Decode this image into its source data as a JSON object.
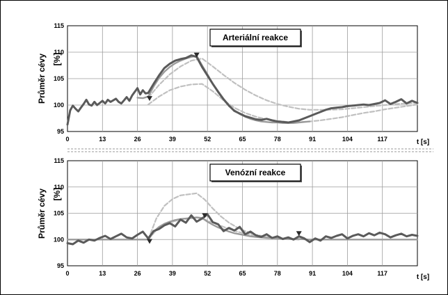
{
  "figure": {
    "colors": {
      "measured": "#5a5a5a",
      "fit": "#9a9a9a",
      "model": "#c0c0c0",
      "grid": "#9c9c9c",
      "marker": "#2a2a2a"
    }
  },
  "chart_data": [
    {
      "type": "line",
      "title": "Arteriální reakce",
      "ylabel_main": "Průměr cévy",
      "ylabel_unit": "[%]",
      "xlabel": "t [s]",
      "xlim": [
        0,
        130
      ],
      "ylim": [
        95,
        115
      ],
      "x_ticks": [
        "0",
        "13",
        "26",
        "39",
        "52",
        "65",
        "78",
        "91",
        "104",
        "117"
      ],
      "y_ticks": [
        "95",
        "100",
        "105",
        "110",
        "115"
      ],
      "grid": true,
      "series": [
        {
          "role": "measured",
          "x": [
            0,
            1,
            2,
            3,
            4,
            5,
            6,
            7,
            8,
            9,
            10,
            11,
            12,
            13,
            14,
            15,
            16,
            17,
            18,
            19,
            20,
            21,
            22,
            23,
            24,
            25,
            26,
            27,
            28,
            29,
            30,
            32,
            34,
            36,
            38,
            40,
            42,
            44,
            46,
            48,
            50,
            52,
            54,
            56,
            58,
            60,
            62,
            64,
            66,
            68,
            70,
            72,
            74,
            76,
            78,
            80,
            82,
            84,
            86,
            88,
            90,
            92,
            94,
            96,
            98,
            100,
            102,
            104,
            106,
            108,
            110,
            112,
            114,
            116,
            118,
            120,
            122,
            124,
            126,
            128,
            130
          ],
          "values": [
            96.3,
            99.0,
            99.9,
            99.3,
            98.8,
            99.5,
            100.2,
            101.0,
            100.1,
            99.9,
            100.6,
            100.0,
            100.4,
            100.8,
            100.3,
            101.0,
            100.6,
            100.9,
            101.2,
            100.6,
            100.3,
            100.9,
            101.5,
            100.8,
            101.8,
            102.5,
            103.2,
            102.0,
            102.8,
            102.2,
            102.3,
            104.0,
            105.6,
            107.0,
            107.8,
            108.4,
            108.7,
            108.9,
            109.4,
            109.1,
            107.2,
            105.6,
            104.0,
            102.5,
            101.1,
            99.9,
            98.9,
            98.4,
            97.9,
            97.6,
            97.3,
            97.2,
            97.4,
            97.1,
            96.9,
            96.8,
            96.7,
            96.9,
            97.1,
            97.5,
            97.9,
            98.3,
            98.7,
            99.1,
            99.4,
            99.5,
            99.6,
            99.8,
            99.9,
            100.0,
            100.1,
            100.0,
            100.2,
            100.4,
            100.9,
            100.2,
            100.6,
            101.1,
            100.3,
            100.8,
            100.4
          ]
        },
        {
          "role": "fit",
          "x": [
            26,
            28,
            30,
            32,
            34,
            36,
            38,
            40,
            42,
            44,
            46,
            48,
            50,
            52,
            54,
            56,
            58,
            60,
            62,
            64,
            66,
            68,
            70,
            72,
            74,
            76,
            78,
            80,
            82,
            84,
            86,
            88,
            90
          ],
          "values": [
            101.4,
            101.3,
            101.6,
            103.5,
            105.1,
            106.3,
            107.2,
            107.9,
            108.4,
            108.8,
            109.1,
            109.3,
            107.5,
            105.8,
            104.0,
            102.4,
            101.0,
            99.8,
            99.0,
            98.3,
            97.8,
            97.4,
            97.1,
            96.9,
            96.8,
            96.7,
            96.7,
            96.6,
            96.6,
            96.6,
            96.7,
            96.8,
            96.9
          ]
        },
        {
          "role": "model-upper",
          "x": [
            30,
            34,
            38,
            42,
            46,
            50,
            54,
            58,
            62,
            66,
            70,
            74,
            78,
            82,
            86,
            90,
            94,
            98,
            102,
            106,
            110,
            114,
            118,
            122,
            126,
            130
          ],
          "values": [
            101.4,
            103.8,
            105.8,
            107.3,
            108.4,
            108.8,
            107.3,
            105.7,
            104.2,
            102.9,
            101.8,
            100.9,
            100.2,
            99.7,
            99.3,
            99.1,
            99.1,
            99.1,
            99.2,
            99.4,
            99.6,
            99.8,
            100.0,
            100.2,
            100.3,
            100.4
          ]
        },
        {
          "role": "model-lower",
          "x": [
            30,
            34,
            38,
            42,
            46,
            50,
            54,
            58,
            62,
            66,
            70,
            74,
            78,
            82,
            86,
            90,
            94,
            98,
            102,
            106,
            110,
            114,
            118,
            122,
            126,
            130
          ],
          "values": [
            100.1,
            101.6,
            102.8,
            103.5,
            103.9,
            104.0,
            102.6,
            100.9,
            99.5,
            98.5,
            97.8,
            97.3,
            97.0,
            96.8,
            96.8,
            96.9,
            97.1,
            97.4,
            97.7,
            98.1,
            98.5,
            98.8,
            99.2,
            99.5,
            99.8,
            100.1
          ]
        }
      ],
      "markers": [
        {
          "x": 30.5,
          "y": 101.3
        },
        {
          "x": 48,
          "y": 109.5
        }
      ]
    },
    {
      "type": "line",
      "title": "Venózní reakce",
      "ylabel_main": "Průměr cévy",
      "ylabel_unit": "[%]",
      "xlabel": "t [s]",
      "xlim": [
        0,
        130
      ],
      "ylim": [
        95,
        115
      ],
      "x_ticks": [
        "0",
        "13",
        "26",
        "39",
        "52",
        "65",
        "78",
        "91",
        "104",
        "117"
      ],
      "y_ticks": [
        "95",
        "100",
        "105",
        "110",
        "115"
      ],
      "grid": true,
      "series": [
        {
          "role": "measured",
          "x": [
            0,
            2,
            4,
            6,
            8,
            10,
            12,
            14,
            16,
            18,
            20,
            22,
            24,
            26,
            28,
            30,
            32,
            34,
            36,
            38,
            40,
            42,
            44,
            46,
            48,
            50,
            52,
            54,
            56,
            58,
            60,
            62,
            64,
            66,
            68,
            70,
            72,
            74,
            76,
            78,
            80,
            82,
            84,
            86,
            88,
            90,
            92,
            94,
            96,
            98,
            100,
            102,
            104,
            106,
            108,
            110,
            112,
            114,
            116,
            118,
            120,
            122,
            124,
            126,
            128,
            130
          ],
          "values": [
            99.3,
            99.1,
            99.8,
            99.4,
            100.0,
            99.8,
            100.3,
            100.7,
            100.1,
            100.6,
            101.1,
            100.4,
            100.2,
            100.9,
            101.5,
            100.2,
            101.6,
            102.0,
            102.7,
            103.1,
            102.5,
            103.8,
            103.2,
            104.6,
            103.4,
            104.0,
            104.8,
            103.3,
            102.9,
            101.6,
            102.2,
            101.7,
            102.4,
            101.0,
            101.5,
            100.8,
            100.5,
            101.0,
            100.3,
            100.6,
            100.1,
            100.4,
            100.0,
            100.6,
            100.2,
            99.5,
            100.2,
            99.8,
            100.6,
            100.3,
            100.7,
            101.0,
            100.2,
            100.7,
            101.0,
            100.6,
            101.2,
            100.8,
            101.3,
            101.0,
            100.4,
            100.8,
            101.1,
            100.6,
            100.9,
            100.7
          ]
        },
        {
          "role": "fit",
          "x": [
            0,
            26,
            30,
            32,
            34,
            36,
            38,
            40,
            42,
            44,
            46,
            48,
            50,
            52,
            54,
            56,
            58,
            60,
            62,
            64,
            66,
            68,
            70,
            74,
            78,
            82,
            86,
            90,
            100,
            110,
            120,
            130
          ],
          "values": [
            100.0,
            100.0,
            100.0,
            101.5,
            102.4,
            103.0,
            103.4,
            103.7,
            103.9,
            104.0,
            104.1,
            104.2,
            104.1,
            103.4,
            102.8,
            102.3,
            101.9,
            101.5,
            101.2,
            101.0,
            100.8,
            100.6,
            100.5,
            100.3,
            100.2,
            100.1,
            100.1,
            100.0,
            100.0,
            100.0,
            100.0,
            100.0
          ]
        },
        {
          "role": "model-upper",
          "x": [
            30,
            33,
            36,
            39,
            42,
            45,
            48,
            51,
            54,
            57,
            60,
            63,
            66,
            70,
            74,
            78,
            82,
            86
          ],
          "values": [
            100.0,
            104.0,
            106.4,
            107.7,
            108.4,
            108.6,
            108.8,
            107.6,
            105.9,
            104.4,
            103.2,
            102.3,
            101.6,
            100.9,
            100.5,
            100.2,
            100.1,
            100.0
          ]
        },
        {
          "role": "model-lower",
          "x": [
            30,
            33,
            36,
            39,
            42,
            45,
            48,
            51,
            54,
            57,
            60,
            63,
            66,
            70,
            74,
            78,
            82,
            86
          ],
          "values": [
            100.0,
            101.8,
            102.8,
            103.4,
            103.8,
            104.0,
            104.2,
            103.8,
            103.2,
            102.6,
            102.0,
            101.5,
            101.1,
            100.7,
            100.4,
            100.2,
            100.1,
            100.0
          ]
        }
      ],
      "markers": [
        {
          "x": 30.5,
          "y": 99.7
        },
        {
          "x": 51,
          "y": 104.6
        },
        {
          "x": 86,
          "y": 101.2
        }
      ]
    }
  ]
}
